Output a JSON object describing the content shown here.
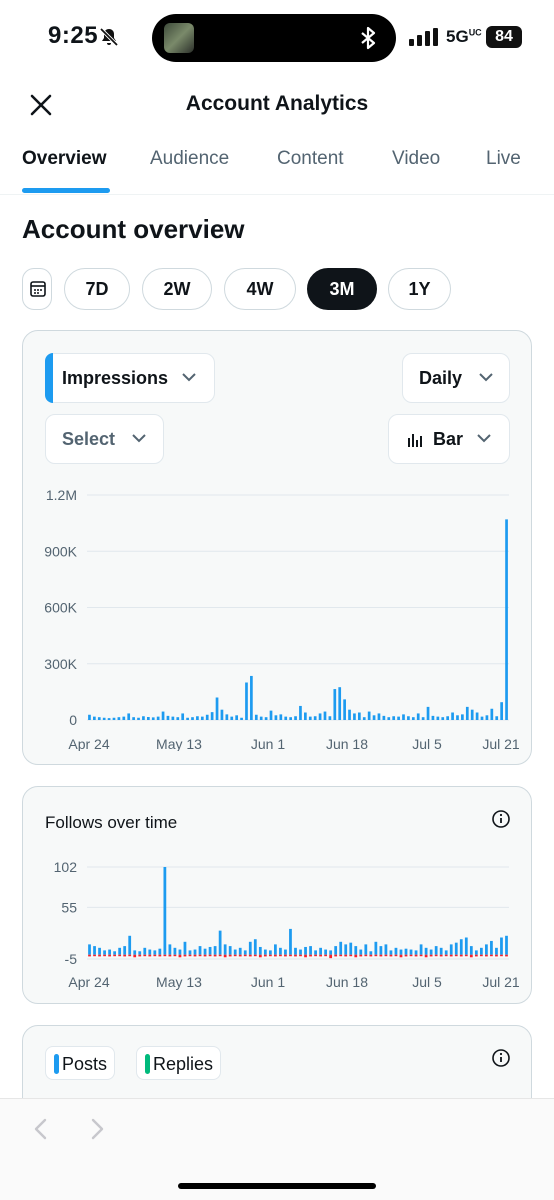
{
  "status_bar": {
    "time": "9:25",
    "network": "5G",
    "network_suffix": "UC",
    "battery": "84",
    "icons": [
      "bell-muted-icon",
      "bluetooth-icon",
      "signal-icon"
    ]
  },
  "header": {
    "title": "Account Analytics",
    "close_icon": "close-icon"
  },
  "tabs": [
    {
      "label": "Overview",
      "active": true
    },
    {
      "label": "Audience",
      "active": false
    },
    {
      "label": "Content",
      "active": false
    },
    {
      "label": "Video",
      "active": false
    },
    {
      "label": "Live",
      "active": false
    }
  ],
  "section_title": "Account overview",
  "ranges": [
    {
      "label": "7D",
      "active": false
    },
    {
      "label": "2W",
      "active": false
    },
    {
      "label": "4W",
      "active": false
    },
    {
      "label": "3M",
      "active": true
    },
    {
      "label": "1Y",
      "active": false
    }
  ],
  "impressions_card": {
    "metric_select": "Impressions",
    "granularity_select": "Daily",
    "compare_select": "Select",
    "chart_type_select": "Bar",
    "accent": "#1d9bf0"
  },
  "follows_card": {
    "title": "Follows over time"
  },
  "posts_card": {
    "legend": [
      {
        "label": "Posts",
        "color": "#1d9bf0"
      },
      {
        "label": "Replies",
        "color": "#00ba7c"
      }
    ]
  },
  "colors": {
    "bar_blue": "#1d9bf0",
    "bar_red": "#f4212e"
  },
  "chart_data": [
    {
      "type": "bar",
      "x_tick_labels": [
        "Apr 24",
        "May 13",
        "Jun 1",
        "Jun 18",
        "Jul 5",
        "Jul 21"
      ],
      "y_tick_labels": [
        "0",
        "300K",
        "600K",
        "900K",
        "1.2M"
      ],
      "ylim": [
        0,
        1200000
      ],
      "grid": true,
      "series": [
        {
          "values": [
            28000,
            18000,
            15000,
            12000,
            10000,
            12000,
            15000,
            18000,
            35000,
            15000,
            12000,
            20000,
            16000,
            14000,
            18000,
            45000,
            22000,
            18000,
            15000,
            35000,
            12000,
            15000,
            20000,
            18000,
            28000,
            42000,
            120000,
            55000,
            30000,
            18000,
            25000,
            12000,
            200000,
            235000,
            28000,
            18000,
            15000,
            50000,
            25000,
            30000,
            18000,
            15000,
            20000,
            75000,
            40000,
            18000,
            20000,
            35000,
            45000,
            20000,
            165000,
            175000,
            110000,
            55000,
            35000,
            40000,
            15000,
            45000,
            25000,
            35000,
            22000,
            15000,
            20000,
            18000,
            30000,
            20000,
            15000,
            35000,
            15000,
            70000,
            22000,
            18000,
            15000,
            20000,
            40000,
            25000,
            30000,
            70000,
            55000,
            40000,
            18000,
            25000,
            60000,
            20000,
            95000,
            1070000
          ]
        }
      ]
    },
    {
      "type": "bar",
      "x_tick_labels": [
        "Apr 24",
        "May 13",
        "Jun 1",
        "Jun 18",
        "Jul 5",
        "Jul 21"
      ],
      "y_tick_labels": [
        "-5",
        "55",
        "102"
      ],
      "ylim": [
        -5,
        102
      ],
      "grid": true,
      "series": [
        {
          "values": [
            12,
            10,
            8,
            5,
            6,
            4,
            8,
            10,
            22,
            5,
            4,
            8,
            6,
            5,
            7,
            102,
            12,
            8,
            6,
            15,
            5,
            6,
            10,
            7,
            9,
            10,
            28,
            12,
            10,
            6,
            8,
            5,
            15,
            18,
            9,
            6,
            5,
            12,
            8,
            6,
            30,
            8,
            6,
            9,
            10,
            5,
            8,
            6,
            5,
            10,
            15,
            12,
            14,
            10,
            6,
            12,
            4,
            15,
            10,
            12,
            5,
            8,
            6,
            7,
            6,
            5,
            12,
            8,
            6,
            10,
            8,
            5,
            12,
            14,
            18,
            20,
            10,
            5,
            8,
            12,
            16,
            8,
            20,
            22
          ],
          "negative_values": [
            -2,
            -1,
            -2,
            -1,
            -2,
            -1,
            -1,
            -2,
            -1,
            -3,
            -2,
            -1,
            -2,
            -1,
            -2,
            -1,
            -2,
            -1,
            -3,
            -2,
            -1,
            -2,
            -1,
            -2,
            -1,
            -2,
            -1,
            -3,
            -2,
            -1,
            -2,
            -1,
            -2,
            -1,
            -3,
            -2,
            -1,
            -2,
            -1,
            -2,
            -1,
            -2,
            -1,
            -3,
            -2,
            -1,
            -2,
            -1,
            -4,
            -2,
            -1,
            -2,
            -1,
            -3,
            -2,
            -1,
            -2,
            -1,
            -2,
            -1,
            -2,
            -1,
            -3,
            -2,
            -1,
            -2,
            -1,
            -3,
            -2,
            -1,
            -2,
            -1,
            -2,
            -1,
            -2,
            -1,
            -3,
            -2,
            -1,
            -2,
            -1,
            -2,
            -1,
            -2
          ]
        }
      ]
    }
  ]
}
